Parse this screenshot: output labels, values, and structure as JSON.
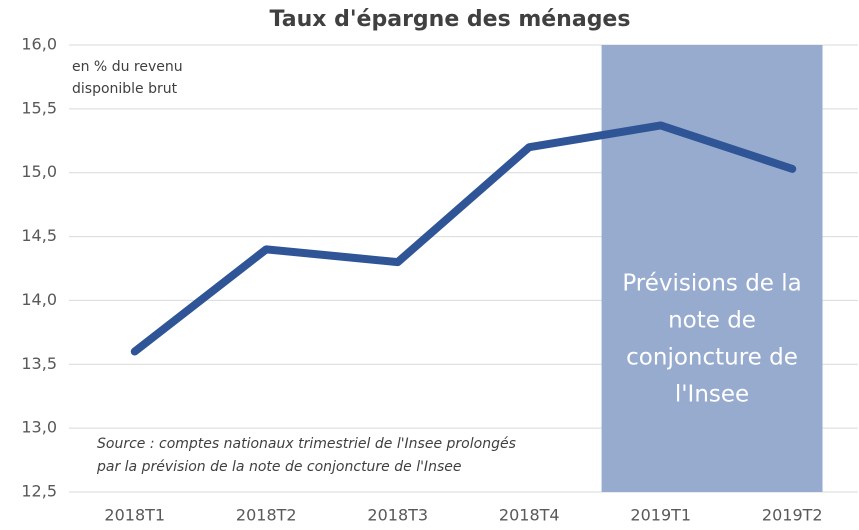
{
  "chart_data": {
    "type": "line",
    "title": "Taux d'épargne des ménages",
    "subtitle": [
      "en % du revenu",
      "disponible brut"
    ],
    "annotation": [
      "Source : comptes nationaux trimestriel de l'Insee prolongés",
      "par la prévision de la note de conjoncture de l'Insee"
    ],
    "highlight": {
      "from": "2019T1",
      "to": "2019T2",
      "color": "#97abcf",
      "label": [
        "Prévisions de la",
        "note de",
        "conjoncture de",
        "l'Insee"
      ]
    },
    "categories": [
      "2018T1",
      "2018T2",
      "2018T3",
      "2018T4",
      "2019T1",
      "2019T2"
    ],
    "series": [
      {
        "name": "Taux d'épargne",
        "color": "#2f5597",
        "values": [
          13.6,
          14.4,
          14.3,
          15.2,
          15.37,
          15.03
        ]
      }
    ],
    "ylim": [
      12.5,
      16.0
    ],
    "yticks": [
      {
        "value": 12.5,
        "label": "12,5"
      },
      {
        "value": 13.0,
        "label": "13,0"
      },
      {
        "value": 13.5,
        "label": "13,5"
      },
      {
        "value": 14.0,
        "label": "14,0"
      },
      {
        "value": 14.5,
        "label": "14,5"
      },
      {
        "value": 15.0,
        "label": "15,0"
      },
      {
        "value": 15.5,
        "label": "15,5"
      },
      {
        "value": 16.0,
        "label": "16,0"
      }
    ],
    "grid": true
  }
}
